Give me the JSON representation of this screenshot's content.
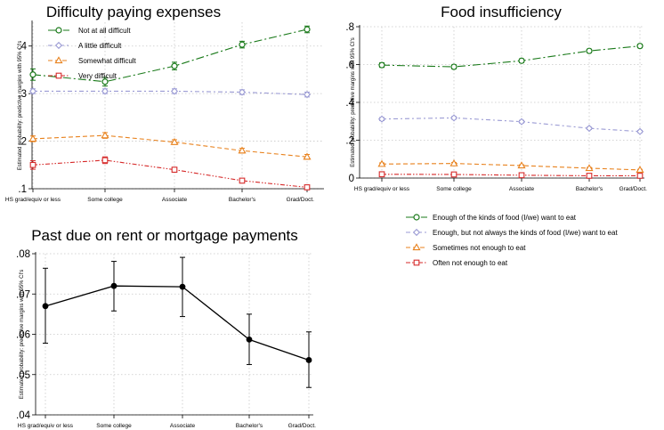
{
  "chart_data": [
    {
      "id": "difficulty",
      "type": "line",
      "title": "Difficulty paying expenses",
      "ylabel": "Estimated probability: predictive margins with 95% CI's",
      "xlabel": "",
      "categories": [
        "HS grad/equiv or less",
        "Some college",
        "Associate",
        "Bachelor's",
        "Grad/Doct."
      ],
      "ylim": [
        0.1,
        0.45
      ],
      "yticks": [
        0.1,
        0.2,
        0.3,
        0.4
      ],
      "ytick_labels": [
        ".1",
        ".2",
        ".3",
        ".4"
      ],
      "legend_position": "top-left",
      "series": [
        {
          "name": "Not at all difficult",
          "color": "#1a7a1a",
          "marker": "circle",
          "dash": "longdashdot",
          "values": [
            0.34,
            0.325,
            0.358,
            0.403,
            0.435
          ],
          "lower": [
            0.328,
            0.316,
            0.35,
            0.396,
            0.428
          ],
          "upper": [
            0.352,
            0.334,
            0.366,
            0.41,
            0.442
          ]
        },
        {
          "name": "A little difficult",
          "color": "#9b9bd4",
          "marker": "diamond",
          "dash": "dashdot",
          "values": [
            0.305,
            0.305,
            0.305,
            0.303,
            0.298
          ],
          "lower": [
            0.3,
            0.3,
            0.3,
            0.298,
            0.293
          ],
          "upper": [
            0.31,
            0.31,
            0.31,
            0.308,
            0.303
          ]
        },
        {
          "name": "Somewhat difficult",
          "color": "#e8821e",
          "marker": "triangle",
          "dash": "dash",
          "values": [
            0.205,
            0.212,
            0.198,
            0.18,
            0.167
          ],
          "lower": [
            0.199,
            0.206,
            0.193,
            0.175,
            0.162
          ],
          "upper": [
            0.211,
            0.218,
            0.203,
            0.185,
            0.172
          ]
        },
        {
          "name": "Very difficult",
          "color": "#d62a2a",
          "marker": "square",
          "dash": "dashdotdot",
          "values": [
            0.15,
            0.16,
            0.14,
            0.117,
            0.103
          ],
          "lower": [
            0.141,
            0.153,
            0.135,
            0.113,
            0.099
          ],
          "upper": [
            0.159,
            0.167,
            0.145,
            0.121,
            0.107
          ]
        }
      ]
    },
    {
      "id": "food",
      "type": "line",
      "title": "Food insufficiency",
      "ylabel": "Estimated probability: predictive margins with 95% CI's",
      "xlabel": "",
      "categories": [
        "HS grad/equiv or less",
        "Some college",
        "Associate",
        "Bachelor's",
        "Grad/Doct."
      ],
      "ylim": [
        0,
        0.8
      ],
      "yticks": [
        0,
        0.2,
        0.4,
        0.6,
        0.8
      ],
      "ytick_labels": [
        "0",
        ".2",
        ".4",
        ".6",
        ".8"
      ],
      "legend_position": "bottom",
      "series": [
        {
          "name": "Enough of the kinds of food (I/we) want to eat",
          "color": "#1a7a1a",
          "marker": "circle",
          "dash": "longdashdot",
          "values": [
            0.597,
            0.588,
            0.62,
            0.672,
            0.698
          ],
          "lower": [
            0.585,
            0.578,
            0.61,
            0.663,
            0.689
          ],
          "upper": [
            0.609,
            0.598,
            0.63,
            0.681,
            0.707
          ]
        },
        {
          "name": "Enough, but not always the kinds of food (I/we) want to eat",
          "color": "#9b9bd4",
          "marker": "diamond",
          "dash": "dashdot",
          "values": [
            0.312,
            0.318,
            0.298,
            0.263,
            0.246
          ],
          "lower": [
            0.304,
            0.311,
            0.291,
            0.257,
            0.24
          ],
          "upper": [
            0.32,
            0.325,
            0.305,
            0.269,
            0.252
          ]
        },
        {
          "name": "Sometimes not enough to eat",
          "color": "#e8821e",
          "marker": "triangle",
          "dash": "dash",
          "values": [
            0.074,
            0.077,
            0.066,
            0.052,
            0.043
          ],
          "lower": [
            0.068,
            0.072,
            0.062,
            0.048,
            0.04
          ],
          "upper": [
            0.08,
            0.082,
            0.07,
            0.056,
            0.046
          ]
        },
        {
          "name": "Often not enough to eat",
          "color": "#d62a2a",
          "marker": "square",
          "dash": "dashdotdot",
          "values": [
            0.02,
            0.019,
            0.015,
            0.012,
            0.012
          ],
          "lower": [
            0.017,
            0.016,
            0.013,
            0.01,
            0.01
          ],
          "upper": [
            0.023,
            0.022,
            0.017,
            0.014,
            0.014
          ]
        }
      ]
    },
    {
      "id": "pastdue",
      "type": "line",
      "title": "Past due on rent or mortgage payments",
      "ylabel": "Estimated probability: predictive margins with 95% CI's",
      "xlabel": "",
      "categories": [
        "HS grad/equiv or less",
        "Some college",
        "Associate",
        "Bachelor's",
        "Grad/Doct."
      ],
      "ylim": [
        0.04,
        0.08
      ],
      "yticks": [
        0.04,
        0.05,
        0.06,
        0.07,
        0.08
      ],
      "ytick_labels": [
        ".04",
        ".05",
        ".06",
        ".07",
        ".08"
      ],
      "series": [
        {
          "name": "Past due on rent or mortgage payments",
          "color": "#000000",
          "marker": "dot",
          "dash": "solid",
          "values": [
            0.067,
            0.072,
            0.0718,
            0.0587,
            0.0536
          ],
          "lower": [
            0.0578,
            0.0658,
            0.0644,
            0.0525,
            0.0468
          ],
          "upper": [
            0.0764,
            0.0781,
            0.0791,
            0.065,
            0.0606
          ]
        }
      ]
    }
  ]
}
